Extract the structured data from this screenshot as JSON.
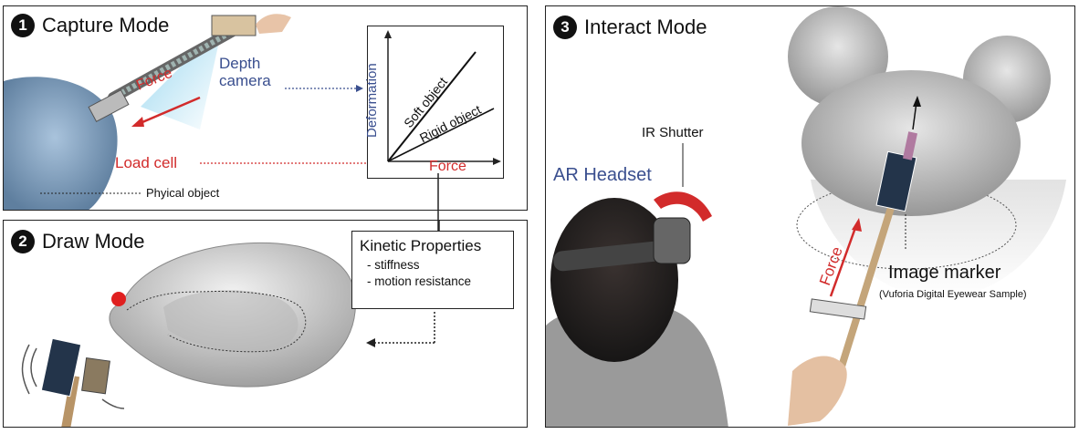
{
  "panel1": {
    "number": "1",
    "title": "Capture Mode",
    "depth_camera_label": "Depth\ncamera",
    "force_label": "Force",
    "load_cell_label": "Load cell",
    "physical_object_label": "Phyical object"
  },
  "graph": {
    "y_label": "Deformation",
    "x_label": "Force",
    "soft_label": "Soft object",
    "rigid_label": "Rigid object"
  },
  "panel2": {
    "number": "2",
    "title": "Draw Mode"
  },
  "kinetic": {
    "title": "Kinetic Properties",
    "items": [
      "- stiffness",
      "- motion resistance"
    ]
  },
  "panel3": {
    "number": "3",
    "title": "Interact Mode",
    "ir_shutter_label": "IR Shutter",
    "ar_headset_label": "AR Headset",
    "force_label": "Force",
    "image_marker_label": "Image marker",
    "image_marker_note": "(Vuforia Digital Eyewear Sample)"
  },
  "colors": {
    "blue": "#3a4f8f",
    "red": "#d22b2b",
    "frame": "#222222"
  }
}
